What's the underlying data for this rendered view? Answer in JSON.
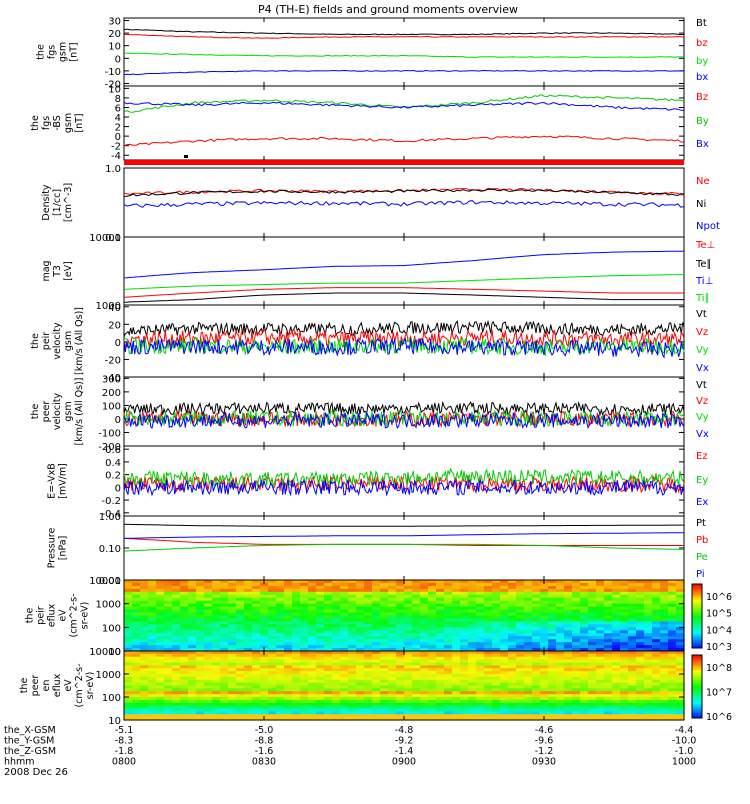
{
  "title": "P4 (TH-E) fields and ground moments overview",
  "footer_date": "2008 Dec 26",
  "colorbar1_labels": [
    "10^6",
    "10^5",
    "10^4",
    "10^3"
  ],
  "colorbar2_labels": [
    "10^8",
    "10^7",
    "10^6"
  ],
  "chart_data": [
    {
      "type": "line",
      "id": "p1",
      "ylabel": [
        "the",
        "fgs",
        "gsm",
        "[nT]"
      ],
      "yticks": [
        30,
        20,
        10,
        0,
        -10,
        -20
      ],
      "ylim": [
        -22,
        32
      ],
      "series": [
        {
          "name": "Bt",
          "color": "#000000",
          "values": [
            23,
            21,
            20,
            19,
            19,
            19,
            20,
            20,
            19
          ]
        },
        {
          "name": "bz",
          "color": "#ff0000",
          "values": [
            19,
            17,
            16,
            17,
            17,
            17,
            17,
            17,
            17
          ]
        },
        {
          "name": "by",
          "color": "#00dd00",
          "values": [
            4,
            3,
            2,
            2,
            2,
            1,
            1,
            1,
            1
          ]
        },
        {
          "name": "bx",
          "color": "#0000ff",
          "values": [
            -13,
            -11,
            -10,
            -10,
            -10,
            -10,
            -10,
            -10,
            -10
          ]
        }
      ]
    },
    {
      "type": "line",
      "id": "p2",
      "ylabel": [
        "the",
        "fgs",
        "-BS",
        "gsm",
        "[nT]"
      ],
      "yticks": [
        10,
        8,
        6,
        4,
        2,
        0,
        -2,
        -4
      ],
      "ylim": [
        -5,
        10.5
      ],
      "series": [
        {
          "name": "Bz",
          "color": "#ff0000",
          "values": [
            -2,
            -1,
            -0.5,
            -0.5,
            -1,
            -0.5,
            0,
            -0.5,
            -1
          ]
        },
        {
          "name": "By",
          "color": "#00cc00",
          "values": [
            5,
            7,
            7.5,
            7,
            6,
            7,
            8.5,
            8,
            7.5
          ]
        },
        {
          "name": "Bx",
          "color": "#0000ff",
          "values": [
            7,
            6.5,
            7,
            6.5,
            6,
            6.5,
            7,
            6,
            5.5
          ]
        }
      ]
    },
    {
      "type": "line",
      "id": "p3",
      "ylabel": [
        "Density",
        "[1/cc]",
        "[cm^-3]"
      ],
      "yticks": [
        "1.0",
        "0.1"
      ],
      "ylim": [
        0.1,
        1.0
      ],
      "yscale": "log",
      "series": [
        {
          "name": "Ne",
          "color": "#ff0000",
          "values": [
            0.42,
            0.45,
            0.47,
            0.46,
            0.47,
            0.49,
            0.48,
            0.45,
            0.42
          ]
        },
        {
          "name": "Ni",
          "color": "#000000",
          "values": [
            0.4,
            0.44,
            0.46,
            0.45,
            0.46,
            0.48,
            0.47,
            0.44,
            0.41
          ]
        },
        {
          "name": "Npot",
          "color": "#0000ff",
          "values": [
            0.28,
            0.3,
            0.31,
            0.31,
            0.3,
            0.32,
            0.31,
            0.3,
            0.29
          ]
        }
      ]
    },
    {
      "type": "line",
      "id": "p4",
      "ylabel": [
        "mag",
        "T3",
        "[eV]"
      ],
      "yticks": [
        "10000",
        "1000"
      ],
      "ylim": [
        1000,
        10000
      ],
      "yscale": "log",
      "series": [
        {
          "name": "Te⊥",
          "color": "#ff0000",
          "values": [
            1300,
            1500,
            1700,
            1800,
            1800,
            1700,
            1600,
            1500,
            1500
          ]
        },
        {
          "name": "Te∥",
          "color": "#000000",
          "values": [
            1100,
            1200,
            1400,
            1500,
            1500,
            1400,
            1300,
            1200,
            1200
          ]
        },
        {
          "name": "Ti⊥",
          "color": "#0000ff",
          "values": [
            2500,
            3000,
            3300,
            3700,
            3800,
            4500,
            5500,
            6000,
            6200
          ]
        },
        {
          "name": "Ti∥",
          "color": "#00dd00",
          "values": [
            1700,
            1900,
            2000,
            2100,
            2100,
            2300,
            2500,
            2700,
            2800
          ]
        }
      ]
    },
    {
      "type": "line",
      "id": "p5",
      "ylabel": [
        "the",
        "peir",
        "velocity",
        "gsm",
        "[km/s (All Qs)]"
      ],
      "yticks": [
        40,
        20,
        0,
        -20,
        -40
      ],
      "ylim": [
        -40,
        42
      ],
      "series": [
        {
          "name": "Vt",
          "color": "#000000",
          "values": [
            12,
            15,
            15,
            14,
            16,
            17,
            15,
            14,
            15
          ]
        },
        {
          "name": "Vz",
          "color": "#ff0000",
          "values": [
            3,
            4,
            5,
            3,
            4,
            5,
            4,
            3,
            3
          ]
        },
        {
          "name": "Vy",
          "color": "#00dd00",
          "values": [
            -5,
            -4,
            -6,
            -5,
            -4,
            -5,
            -6,
            -5,
            -5
          ]
        },
        {
          "name": "Vx",
          "color": "#0000ff",
          "values": [
            -6,
            -5,
            -6,
            -6,
            -5,
            -6,
            -7,
            -8,
            -9
          ]
        }
      ]
    },
    {
      "type": "line",
      "id": "p6",
      "ylabel": [
        "the",
        "peer",
        "velocity",
        "gsm",
        "[km/s (All Qs)]"
      ],
      "yticks": [
        300,
        200,
        100,
        0,
        -100,
        -200
      ],
      "ylim": [
        -200,
        310
      ],
      "series": [
        {
          "name": "Vt",
          "color": "#000000",
          "values": [
            70,
            75,
            80,
            75,
            78,
            80,
            76,
            74,
            72
          ]
        },
        {
          "name": "Vz",
          "color": "#ff0000",
          "values": [
            0,
            0,
            0,
            0,
            0,
            0,
            0,
            0,
            0
          ]
        },
        {
          "name": "Vy",
          "color": "#00dd00",
          "values": [
            5,
            3,
            4,
            2,
            3,
            4,
            3,
            2,
            3
          ]
        },
        {
          "name": "Vx",
          "color": "#0000ff",
          "values": [
            -15,
            -10,
            -12,
            -10,
            -12,
            -10,
            -12,
            -15,
            -15
          ]
        }
      ]
    },
    {
      "type": "line",
      "id": "p7",
      "ylabel": [
        "E=-VxB",
        "[mV/m]"
      ],
      "yticks": [
        0.6,
        0.4,
        0.2,
        0.0,
        -0.2,
        -0.4
      ],
      "ylim": [
        -0.45,
        0.65
      ],
      "series": [
        {
          "name": "Ez",
          "color": "#ff0000",
          "values": [
            0.05,
            0.05,
            0.05,
            0.05,
            0.06,
            0.06,
            0.05,
            0.05,
            0.05
          ]
        },
        {
          "name": "Ey",
          "color": "#00cc00",
          "values": [
            0.15,
            0.14,
            0.12,
            0.13,
            0.15,
            0.18,
            0.16,
            0.15,
            0.14
          ]
        },
        {
          "name": "Ex",
          "color": "#0000ff",
          "values": [
            0.0,
            0.0,
            0.0,
            0.0,
            0.0,
            0.0,
            0.0,
            0.0,
            0.0
          ]
        }
      ]
    },
    {
      "type": "line",
      "id": "p8",
      "ylabel": [
        "Pressure",
        "[nPa]"
      ],
      "yticks": [
        "1.00",
        "0.10",
        "0.01"
      ],
      "ylim": [
        0.01,
        1.0
      ],
      "yscale": "log",
      "series": [
        {
          "name": "Pt",
          "color": "#000000",
          "values": [
            0.55,
            0.5,
            0.48,
            0.48,
            0.48,
            0.49,
            0.5,
            0.51,
            0.52
          ]
        },
        {
          "name": "Pb",
          "color": "#ff0000",
          "values": [
            0.2,
            0.15,
            0.13,
            0.13,
            0.13,
            0.12,
            0.12,
            0.12,
            0.12
          ]
        },
        {
          "name": "Pe",
          "color": "#00cc00",
          "values": [
            0.08,
            0.1,
            0.12,
            0.13,
            0.13,
            0.13,
            0.12,
            0.1,
            0.09
          ]
        },
        {
          "name": "Pi",
          "color": "#0000ff",
          "values": [
            0.2,
            0.22,
            0.23,
            0.24,
            0.24,
            0.26,
            0.28,
            0.29,
            0.3
          ]
        }
      ]
    },
    {
      "type": "heatmap",
      "id": "p9",
      "ylabel": [
        "the",
        "peir",
        "eflux",
        "eV",
        "(cm^2-s-",
        "sr-eV)"
      ],
      "yticks": [
        "10000",
        "1000",
        "100",
        "10"
      ],
      "ylim": [
        10,
        10000
      ],
      "yscale": "log"
    },
    {
      "type": "heatmap",
      "id": "p10",
      "ylabel": [
        "the",
        "peer",
        "en",
        "eflux",
        "eV",
        "(cm^2-s-",
        "sr-eV)"
      ],
      "yticks": [
        "10000",
        "1000",
        "100",
        "10"
      ],
      "ylim": [
        10,
        10000
      ],
      "yscale": "log"
    }
  ],
  "xaxis": {
    "row_labels": [
      "the_X-GSM",
      "the_Y-GSM",
      "the_Z-GSM",
      "hhmm"
    ],
    "columns": [
      [
        "-5.1",
        "-8.3",
        "-1.8",
        "0800"
      ],
      [
        "-5.0",
        "-8.8",
        "-1.6",
        "0830"
      ],
      [
        "-4.8",
        "-9.2",
        "-1.4",
        "0900"
      ],
      [
        "-4.6",
        "-9.6",
        "-1.2",
        "0930"
      ],
      [
        "-4.4",
        "-10.0",
        "-1.0",
        "1000"
      ]
    ]
  }
}
